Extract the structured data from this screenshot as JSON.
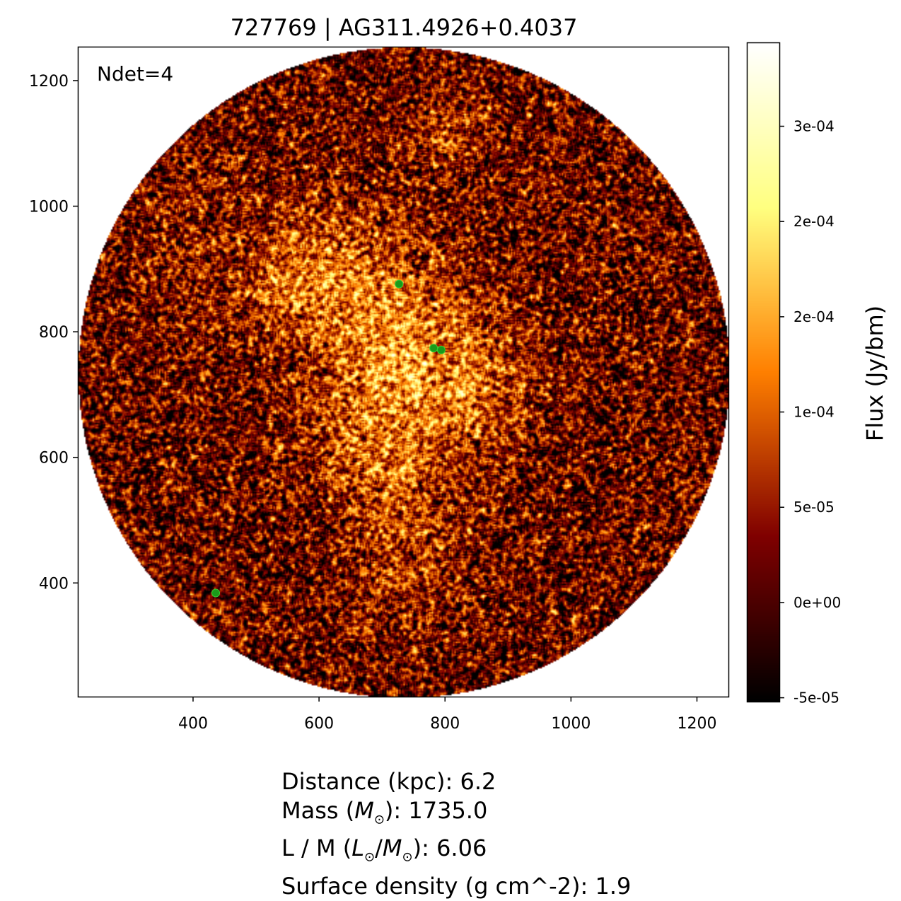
{
  "chart_data": {
    "type": "heatmap",
    "title": "727769 | AG311.4926+0.4037",
    "annotation": "Ndet=4",
    "xlim": [
      217,
      1250
    ],
    "ylim": [
      219,
      1254
    ],
    "xticks": [
      400,
      600,
      800,
      1000,
      1200
    ],
    "yticks": [
      400,
      600,
      800,
      1000,
      1200
    ],
    "field_center": [
      734,
      736
    ],
    "field_radius": 517,
    "colormap": "afmhot",
    "colorbar": {
      "label": "Flux (Jy/bm)",
      "range": [
        -5.2e-05,
        0.000294
      ],
      "ticks": [
        {
          "value": 0.00025,
          "label": "3e-04"
        },
        {
          "value": 0.0002,
          "label": "2e-04"
        },
        {
          "value": 0.00015,
          "label": "2e-04"
        },
        {
          "value": 0.0001,
          "label": "1e-04"
        },
        {
          "value": 5e-05,
          "label": "5e-05"
        },
        {
          "value": 0,
          "label": "0e+00"
        },
        {
          "value": -5e-05,
          "label": "-5e-05"
        }
      ]
    },
    "detections": [
      {
        "x": 727,
        "y": 876
      },
      {
        "x": 782,
        "y": 774
      },
      {
        "x": 794,
        "y": 771
      },
      {
        "x": 436,
        "y": 384
      }
    ],
    "detection_color": "#1a9a1a"
  },
  "info": {
    "distance": "Distance (kpc): 6.2",
    "mass_prefix": "Mass (",
    "mass_sym": "M",
    "mass_suffix": "): 1735.0",
    "lm_prefix": "L / M (",
    "lm_l": "L",
    "lm_m": "M",
    "lm_suffix": "): 6.06",
    "sun": "⊙",
    "surface": "Surface density (g cm^-2): 1.9"
  }
}
